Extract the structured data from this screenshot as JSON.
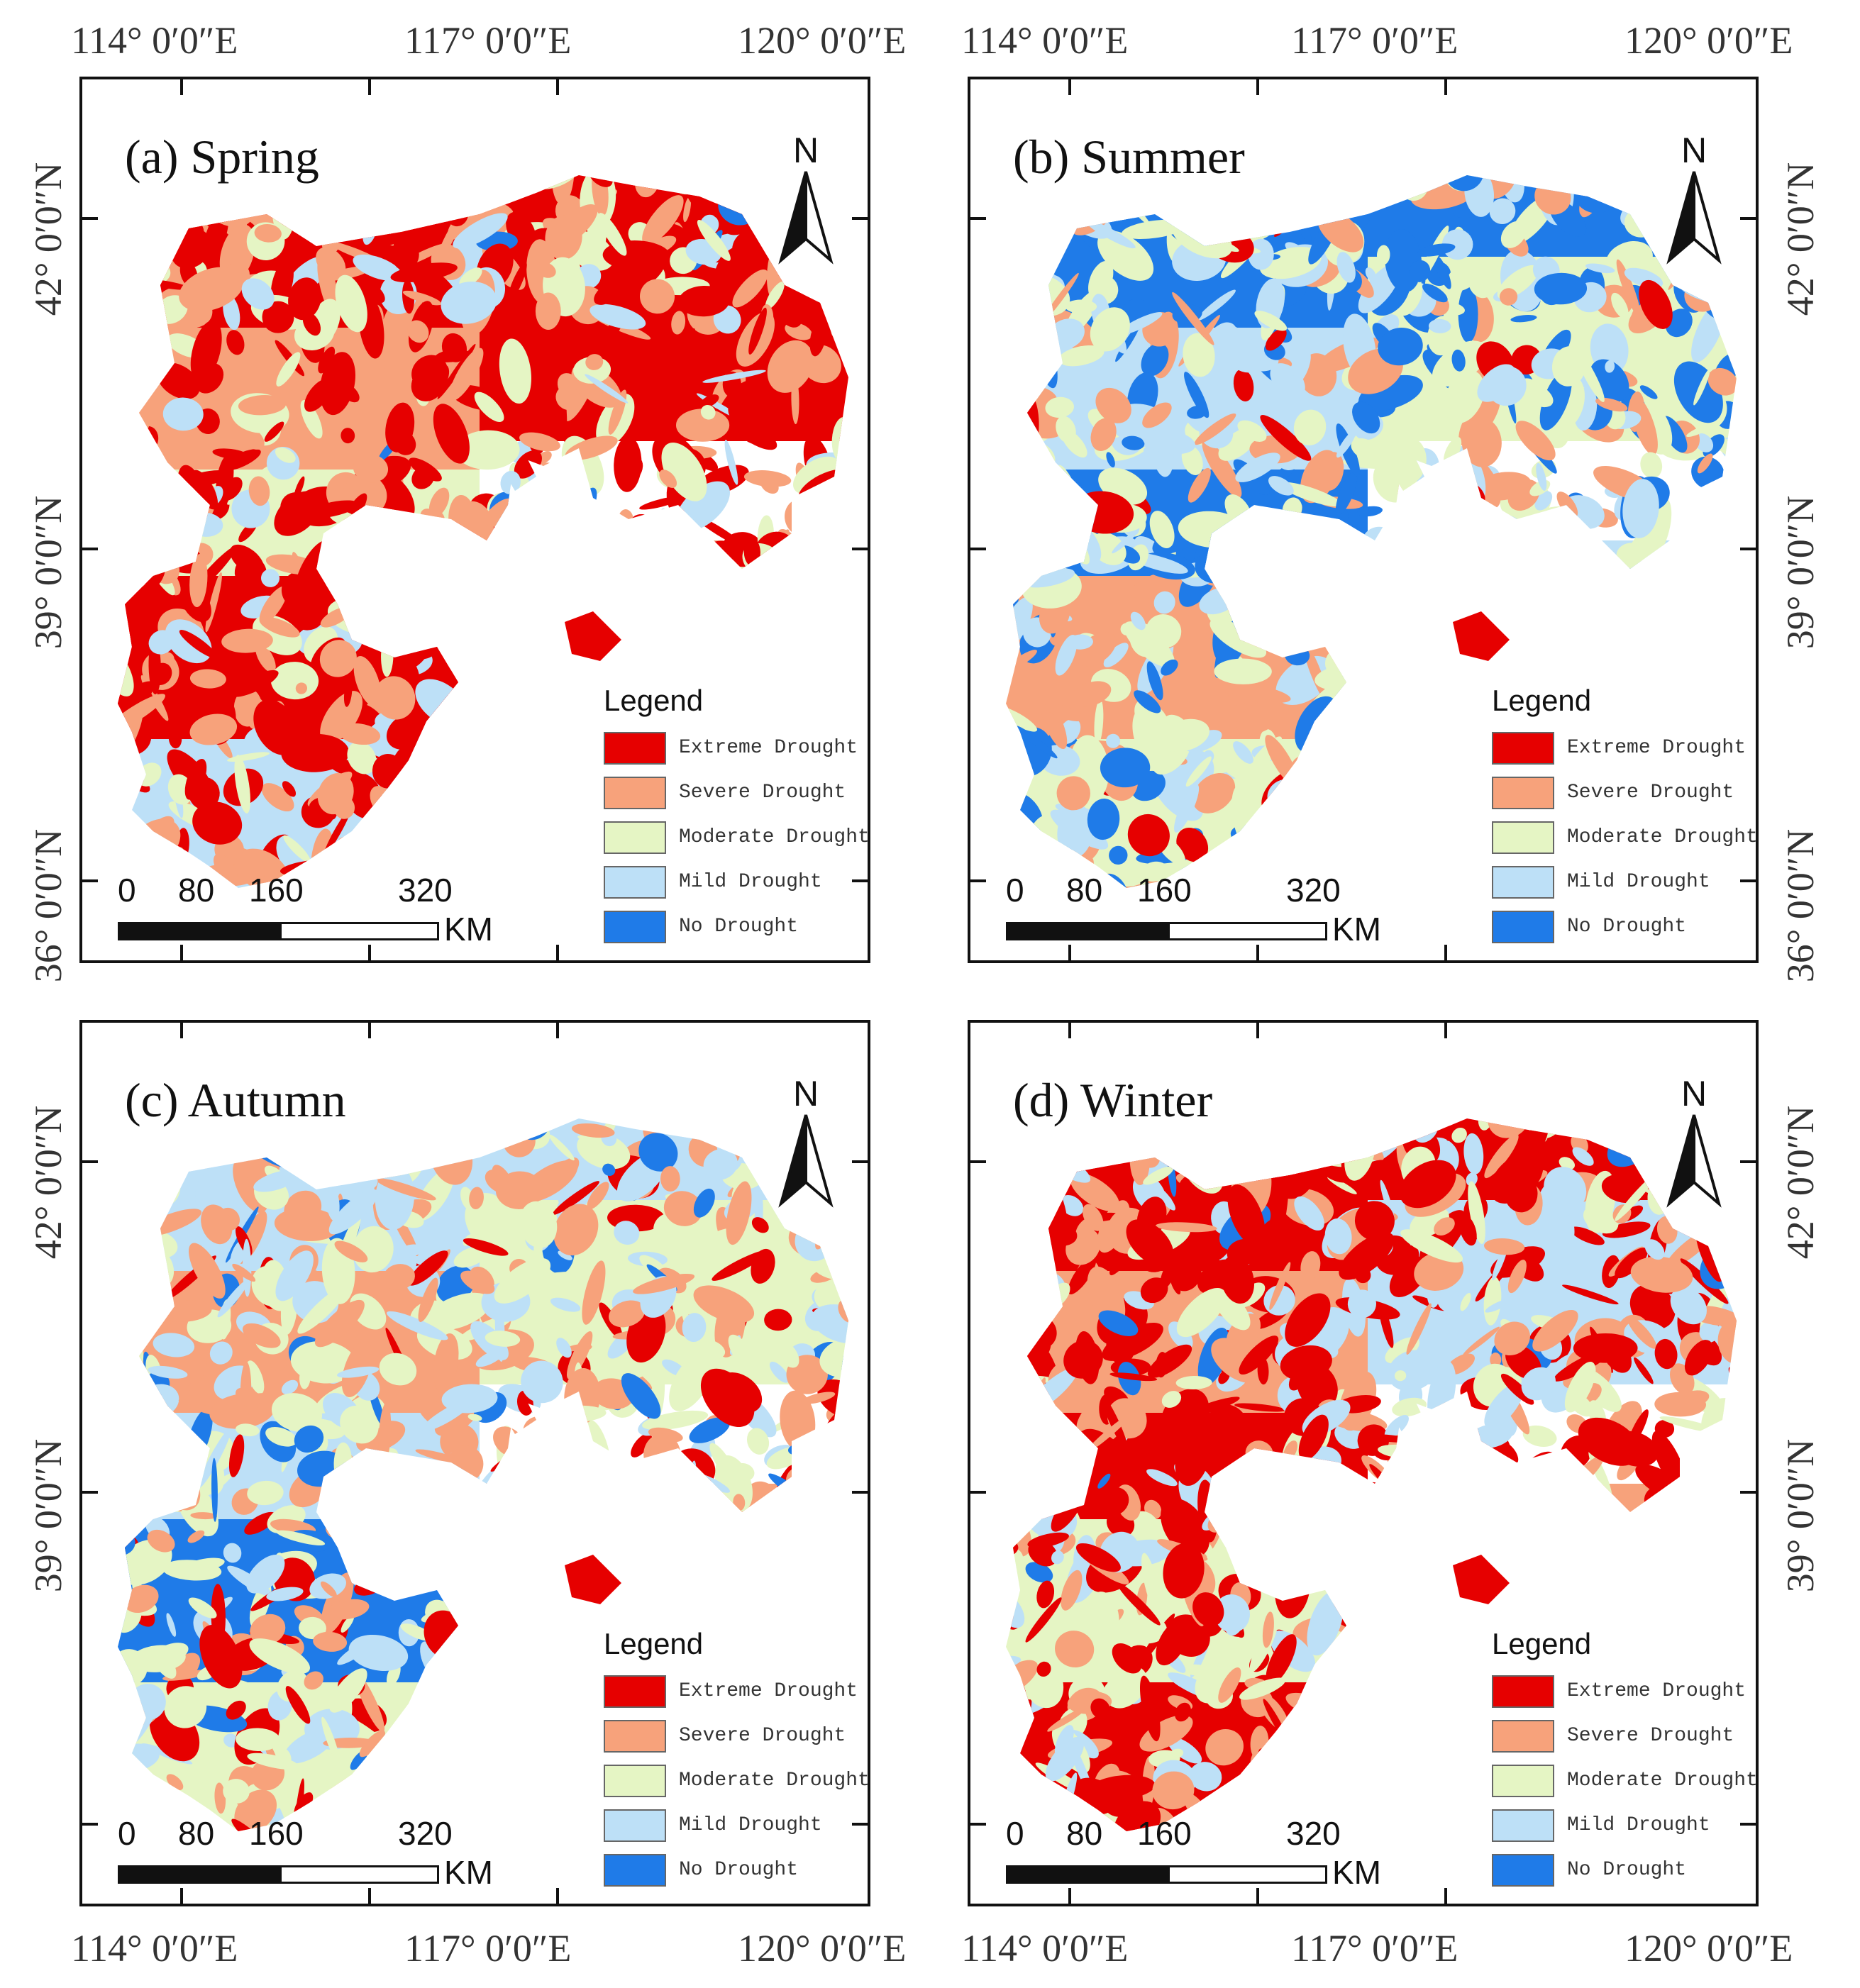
{
  "colors": {
    "extreme": "#e60000",
    "severe": "#f7a27b",
    "moderate": "#e5f5c4",
    "mild": "#bde0f7",
    "none": "#1f7be8"
  },
  "lon_labels": [
    "114° 0′0″E",
    "117° 0′0″E",
    "120° 0′0″E"
  ],
  "lat_labels": [
    "42° 0′0″N",
    "39° 0′0″N",
    "36° 0′0″N"
  ],
  "panels": [
    {
      "title": "(a) Spring",
      "north": "N",
      "legend": {
        "title": "Legend",
        "items": [
          "Extreme Drought",
          "Severe Drought",
          "Moderate Drought",
          "Mild Drought",
          "No Drought"
        ]
      },
      "scale": {
        "labels": [
          "0",
          "80",
          "160",
          "320"
        ],
        "unit": "KM"
      },
      "dominant": [
        "extreme",
        "severe",
        "extreme",
        "moderate",
        "extreme",
        "severe",
        "mild"
      ]
    },
    {
      "title": "(b) Summer",
      "north": "N",
      "legend": {
        "title": "Legend",
        "items": [
          "Extreme Drought",
          "Severe Drought",
          "Moderate Drought",
          "Mild Drought",
          "No Drought"
        ]
      },
      "scale": {
        "labels": [
          "0",
          "80",
          "160",
          "320"
        ],
        "unit": "KM"
      },
      "dominant": [
        "none",
        "mild",
        "moderate",
        "none",
        "severe",
        "mild",
        "moderate"
      ]
    },
    {
      "title": "(c) Autumn",
      "north": "N",
      "legend": {
        "title": "Legend",
        "items": [
          "Extreme Drought",
          "Severe Drought",
          "Moderate Drought",
          "Mild Drought",
          "No Drought"
        ]
      },
      "scale": {
        "labels": [
          "0",
          "80",
          "160",
          "320"
        ],
        "unit": "KM"
      },
      "dominant": [
        "mild",
        "severe",
        "moderate",
        "mild",
        "none",
        "severe",
        "moderate"
      ]
    },
    {
      "title": "(d) Winter",
      "north": "N",
      "legend": {
        "title": "Legend",
        "items": [
          "Extreme Drought",
          "Severe Drought",
          "Moderate Drought",
          "Mild Drought",
          "No Drought"
        ]
      },
      "scale": {
        "labels": [
          "0",
          "80",
          "160",
          "320"
        ],
        "unit": "KM"
      },
      "dominant": [
        "extreme",
        "severe",
        "mild",
        "extreme",
        "moderate",
        "severe",
        "extreme"
      ]
    }
  ]
}
